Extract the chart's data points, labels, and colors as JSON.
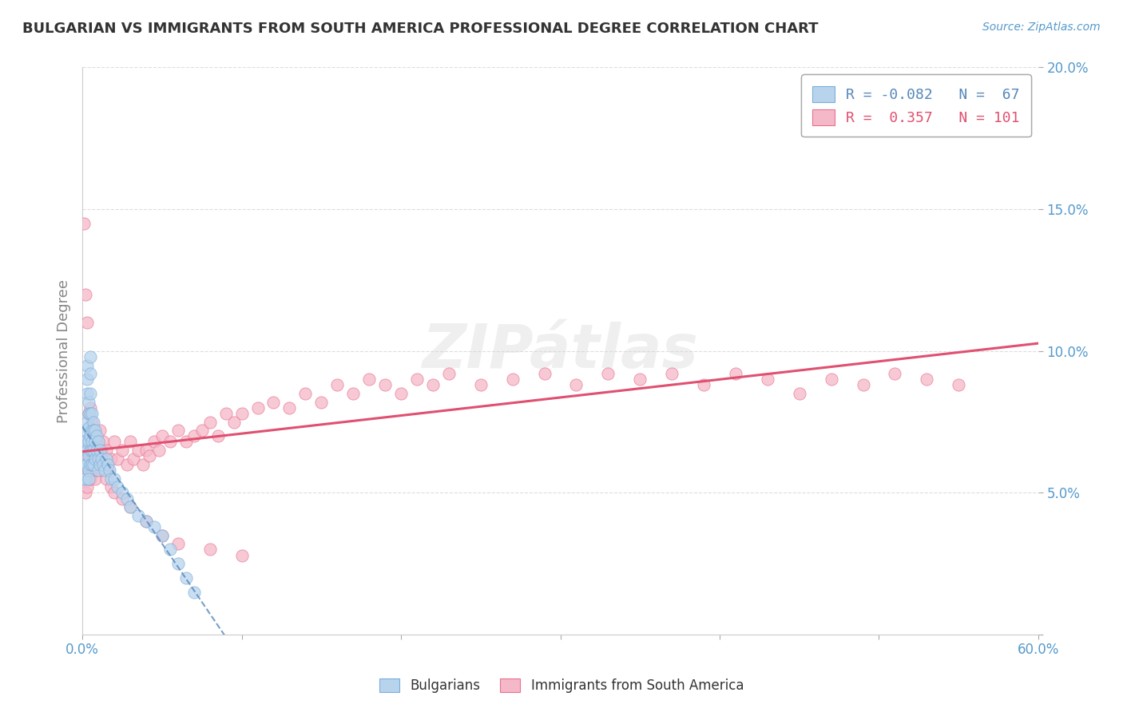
{
  "title": "BULGARIAN VS IMMIGRANTS FROM SOUTH AMERICA PROFESSIONAL DEGREE CORRELATION CHART",
  "source": "Source: ZipAtlas.com",
  "ylabel": "Professional Degree",
  "xlim": [
    0,
    0.6
  ],
  "ylim": [
    0,
    0.2
  ],
  "xticks": [
    0.0,
    0.1,
    0.2,
    0.3,
    0.4,
    0.5,
    0.6
  ],
  "yticks": [
    0.0,
    0.05,
    0.1,
    0.15,
    0.2
  ],
  "xticklabels_shown": [
    "0.0%",
    "",
    "",
    "",
    "",
    "",
    "60.0%"
  ],
  "yticklabels_shown": [
    "",
    "5.0%",
    "10.0%",
    "15.0%",
    "20.0%"
  ],
  "legend1_label": "Bulgarians",
  "legend2_label": "Immigrants from South America",
  "r1": -0.082,
  "n1": 67,
  "r2": 0.357,
  "n2": 101,
  "color1": "#b8d4ed",
  "color2": "#f5b8c8",
  "edge1": "#7aadda",
  "edge2": "#e87090",
  "trendline1_color": "#5588bb",
  "trendline2_color": "#e05070",
  "bulgarians_x": [
    0.001,
    0.001,
    0.001,
    0.002,
    0.002,
    0.002,
    0.002,
    0.002,
    0.003,
    0.003,
    0.003,
    0.003,
    0.003,
    0.003,
    0.004,
    0.004,
    0.004,
    0.004,
    0.004,
    0.004,
    0.004,
    0.005,
    0.005,
    0.005,
    0.005,
    0.005,
    0.005,
    0.005,
    0.006,
    0.006,
    0.006,
    0.006,
    0.006,
    0.007,
    0.007,
    0.007,
    0.007,
    0.008,
    0.008,
    0.008,
    0.009,
    0.009,
    0.01,
    0.01,
    0.01,
    0.011,
    0.011,
    0.012,
    0.013,
    0.014,
    0.015,
    0.016,
    0.017,
    0.018,
    0.02,
    0.022,
    0.025,
    0.028,
    0.03,
    0.035,
    0.04,
    0.045,
    0.05,
    0.055,
    0.06,
    0.065,
    0.07
  ],
  "bulgarians_y": [
    0.068,
    0.06,
    0.055,
    0.072,
    0.065,
    0.068,
    0.06,
    0.055,
    0.095,
    0.09,
    0.085,
    0.075,
    0.065,
    0.06,
    0.082,
    0.078,
    0.073,
    0.068,
    0.063,
    0.058,
    0.055,
    0.098,
    0.092,
    0.085,
    0.078,
    0.07,
    0.065,
    0.06,
    0.078,
    0.072,
    0.068,
    0.065,
    0.06,
    0.075,
    0.072,
    0.065,
    0.06,
    0.072,
    0.068,
    0.062,
    0.07,
    0.065,
    0.068,
    0.062,
    0.058,
    0.065,
    0.06,
    0.062,
    0.06,
    0.058,
    0.062,
    0.06,
    0.058,
    0.055,
    0.055,
    0.052,
    0.05,
    0.048,
    0.045,
    0.042,
    0.04,
    0.038,
    0.035,
    0.03,
    0.025,
    0.02,
    0.015
  ],
  "south_america_x": [
    0.001,
    0.002,
    0.002,
    0.003,
    0.003,
    0.003,
    0.004,
    0.004,
    0.004,
    0.005,
    0.005,
    0.005,
    0.006,
    0.006,
    0.007,
    0.007,
    0.008,
    0.008,
    0.009,
    0.01,
    0.01,
    0.011,
    0.012,
    0.013,
    0.014,
    0.015,
    0.016,
    0.018,
    0.02,
    0.022,
    0.025,
    0.028,
    0.03,
    0.032,
    0.035,
    0.038,
    0.04,
    0.042,
    0.045,
    0.048,
    0.05,
    0.055,
    0.06,
    0.065,
    0.07,
    0.075,
    0.08,
    0.085,
    0.09,
    0.095,
    0.1,
    0.11,
    0.12,
    0.13,
    0.14,
    0.15,
    0.16,
    0.17,
    0.18,
    0.19,
    0.2,
    0.21,
    0.22,
    0.23,
    0.25,
    0.27,
    0.29,
    0.31,
    0.33,
    0.35,
    0.37,
    0.39,
    0.41,
    0.43,
    0.45,
    0.47,
    0.49,
    0.51,
    0.53,
    0.55,
    0.001,
    0.002,
    0.003,
    0.004,
    0.005,
    0.006,
    0.007,
    0.008,
    0.009,
    0.01,
    0.012,
    0.015,
    0.018,
    0.02,
    0.025,
    0.03,
    0.04,
    0.05,
    0.06,
    0.08,
    0.1
  ],
  "south_america_y": [
    0.062,
    0.058,
    0.05,
    0.068,
    0.06,
    0.052,
    0.065,
    0.058,
    0.055,
    0.07,
    0.062,
    0.055,
    0.065,
    0.058,
    0.068,
    0.06,
    0.063,
    0.055,
    0.058,
    0.068,
    0.062,
    0.072,
    0.065,
    0.068,
    0.06,
    0.065,
    0.058,
    0.062,
    0.068,
    0.062,
    0.065,
    0.06,
    0.068,
    0.062,
    0.065,
    0.06,
    0.065,
    0.063,
    0.068,
    0.065,
    0.07,
    0.068,
    0.072,
    0.068,
    0.07,
    0.072,
    0.075,
    0.07,
    0.078,
    0.075,
    0.078,
    0.08,
    0.082,
    0.08,
    0.085,
    0.082,
    0.088,
    0.085,
    0.09,
    0.088,
    0.085,
    0.09,
    0.088,
    0.092,
    0.088,
    0.09,
    0.092,
    0.088,
    0.092,
    0.09,
    0.092,
    0.088,
    0.092,
    0.09,
    0.085,
    0.09,
    0.088,
    0.092,
    0.09,
    0.088,
    0.145,
    0.12,
    0.11,
    0.078,
    0.08,
    0.075,
    0.072,
    0.07,
    0.065,
    0.062,
    0.058,
    0.055,
    0.052,
    0.05,
    0.048,
    0.045,
    0.04,
    0.035,
    0.032,
    0.03,
    0.028
  ],
  "background_color": "#ffffff",
  "grid_color": "#dddddd",
  "title_color": "#333333",
  "axis_label_color": "#5599cc"
}
